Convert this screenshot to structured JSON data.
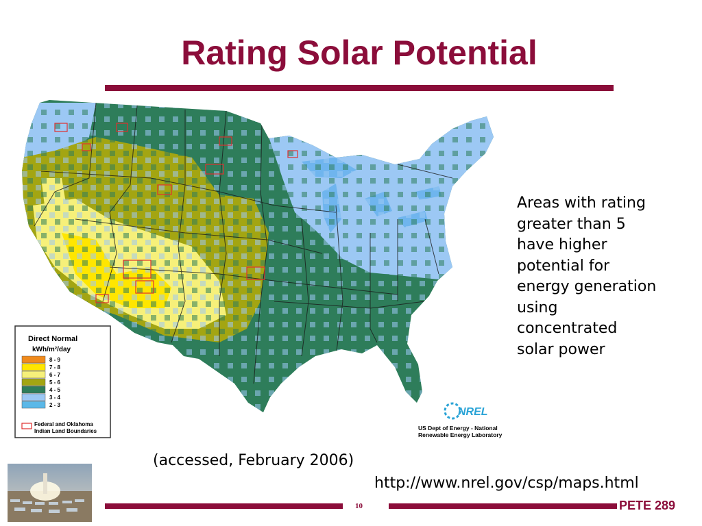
{
  "slide": {
    "title": "Rating Solar Potential",
    "note_lines": [
      "Areas with rating",
      "greater than 5",
      "have higher",
      "potential for",
      "energy generation",
      "using",
      "concentrated",
      "solar power"
    ],
    "accessed": "(accessed, February 2006)",
    "url": "http://www.nrel.gov/csp/maps.html",
    "page_number": "10",
    "course": "PETE 289",
    "accent_color": "#8b0d3a"
  },
  "map": {
    "legend": {
      "title_line1": "Direct Normal",
      "title_line2": "kWh/m²/day",
      "classes": [
        {
          "label": "8 - 9",
          "color": "#f08a1c"
        },
        {
          "label": "7 - 8",
          "color": "#ffe600"
        },
        {
          "label": "6 - 7",
          "color": "#f6f07a"
        },
        {
          "label": "5 - 6",
          "color": "#a3a512"
        },
        {
          "label": "4 - 5",
          "color": "#2e7d5a"
        },
        {
          "label": "3 - 4",
          "color": "#9cc8f4"
        },
        {
          "label": "2 - 3",
          "color": "#5bb8e8"
        }
      ],
      "boundary_label_line1": "Federal and Oklahoma",
      "boundary_label_line2": "Indian Land Boundaries",
      "boundary_color": "#e03030"
    },
    "credit_logo": "NREL",
    "credit_line1": "US Dept of Energy - National",
    "credit_line2": "Renewable Energy Laboratory"
  }
}
